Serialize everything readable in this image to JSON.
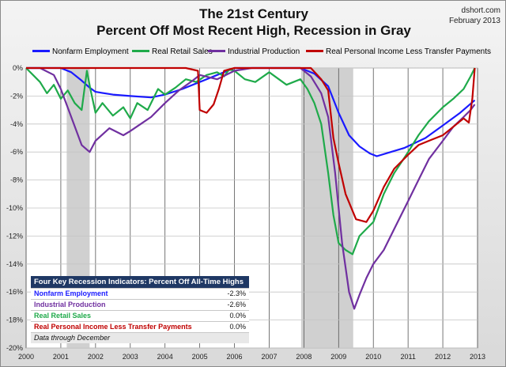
{
  "header": {
    "title_line1": "The 21st Century",
    "title_line2": "Percent Off Most Recent High, Recession in Gray",
    "source": "dshort.com",
    "date": "February 2013"
  },
  "legend": [
    {
      "name": "Nonfarm Employment",
      "color": "#1a1aff"
    },
    {
      "name": "Real Retail Sales",
      "color": "#1faa4a"
    },
    {
      "name": "Industrial Production",
      "color": "#7030a0"
    },
    {
      "name": "Real Personal Income Less Transfer Payments",
      "color": "#c00000"
    }
  ],
  "table": {
    "header": "Four Key Recession Indicators: Percent Off All-Time Highs",
    "rows": [
      {
        "label": "Nonfarm Employment",
        "value": "-2.3%",
        "color": "#1a1aff"
      },
      {
        "label": "Industrial Production",
        "value": "-2.6%",
        "color": "#7030a0"
      },
      {
        "label": "Real Retail Sales",
        "value": "0.0%",
        "color": "#1faa4a"
      },
      {
        "label": "Real Personal Income Less Transfer Payments",
        "value": "0.0%",
        "color": "#c00000"
      }
    ],
    "note": "Data through December"
  },
  "chart_data": {
    "type": "line",
    "title": "The 21st Century",
    "subtitle": "Percent Off Most Recent High, Recession in Gray",
    "xlabel": "",
    "ylabel": "",
    "xlim": [
      2000,
      2013
    ],
    "ylim": [
      -20,
      0
    ],
    "x_ticks": [
      "2000",
      "2001",
      "2002",
      "2003",
      "2004",
      "2005",
      "2006",
      "2007",
      "2008",
      "2009",
      "2010",
      "2011",
      "2012",
      "2013"
    ],
    "y_ticks": [
      "0%",
      "-2%",
      "-4%",
      "-6%",
      "-8%",
      "-10%",
      "-12%",
      "-14%",
      "-16%",
      "-18%",
      "-20%"
    ],
    "grid": true,
    "legend_position": "top",
    "recessions": [
      [
        2001.17,
        2001.83
      ],
      [
        2007.92,
        2009.42
      ]
    ],
    "series": [
      {
        "name": "Nonfarm Employment",
        "color": "#1a1aff",
        "x": [
          2000,
          2000.5,
          2001,
          2001.3,
          2001.6,
          2001.83,
          2002,
          2002.5,
          2003,
          2003.6,
          2004,
          2004.5,
          2005,
          2005.5,
          2006,
          2007,
          2007.9,
          2008.3,
          2008.7,
          2009,
          2009.3,
          2009.6,
          2009.9,
          2010.1,
          2010.5,
          2010.9,
          2011.5,
          2012,
          2012.5,
          2012.92
        ],
        "y": [
          0,
          0,
          0,
          -0.3,
          -0.9,
          -1.4,
          -1.7,
          -1.9,
          -2.0,
          -2.1,
          -1.9,
          -1.5,
          -1.0,
          -0.5,
          0,
          0,
          0,
          -0.4,
          -1.3,
          -3.2,
          -4.8,
          -5.6,
          -6.1,
          -6.3,
          -6.0,
          -5.7,
          -5.0,
          -4.1,
          -3.2,
          -2.3
        ]
      },
      {
        "name": "Real Retail Sales",
        "color": "#1faa4a",
        "x": [
          2000,
          2000.2,
          2000.4,
          2000.6,
          2000.8,
          2001,
          2001.2,
          2001.4,
          2001.6,
          2001.75,
          2001.85,
          2002,
          2002.2,
          2002.5,
          2002.8,
          2003,
          2003.2,
          2003.5,
          2003.8,
          2004,
          2004.3,
          2004.6,
          2004.9,
          2005.2,
          2005.5,
          2005.7,
          2005.85,
          2006,
          2006.3,
          2006.6,
          2007,
          2007.5,
          2007.9,
          2008.1,
          2008.3,
          2008.5,
          2008.7,
          2008.85,
          2009,
          2009.2,
          2009.4,
          2009.6,
          2009.8,
          2010,
          2010.3,
          2010.6,
          2011,
          2011.3,
          2011.6,
          2012,
          2012.3,
          2012.6,
          2012.8,
          2012.92
        ],
        "y": [
          0,
          -0.5,
          -1.0,
          -1.8,
          -1.2,
          -2.2,
          -1.6,
          -2.5,
          -3.0,
          -0.2,
          -1.5,
          -3.2,
          -2.5,
          -3.4,
          -2.8,
          -3.6,
          -2.5,
          -3.0,
          -1.5,
          -1.9,
          -1.4,
          -0.8,
          -1.0,
          -0.5,
          -0.3,
          -0.6,
          -0.1,
          -0.2,
          -0.8,
          -1.0,
          -0.3,
          -1.2,
          -0.8,
          -1.5,
          -2.5,
          -4.0,
          -7.5,
          -10.5,
          -12.5,
          -13.0,
          -13.3,
          -12.0,
          -11.5,
          -11.0,
          -9.0,
          -7.5,
          -6.0,
          -4.8,
          -3.8,
          -2.8,
          -2.2,
          -1.5,
          -0.6,
          0.0
        ]
      },
      {
        "name": "Industrial Production",
        "color": "#7030a0",
        "x": [
          2000,
          2000.4,
          2000.8,
          2001,
          2001.3,
          2001.6,
          2001.83,
          2002,
          2002.4,
          2002.8,
          2003,
          2003.3,
          2003.6,
          2004,
          2004.4,
          2004.8,
          2005,
          2005.5,
          2006,
          2006.5,
          2007,
          2007.5,
          2007.9,
          2008.2,
          2008.5,
          2008.7,
          2008.9,
          2009.1,
          2009.3,
          2009.45,
          2009.6,
          2009.8,
          2010,
          2010.3,
          2010.6,
          2011,
          2011.3,
          2011.6,
          2012,
          2012.3,
          2012.6,
          2012.8,
          2012.92
        ],
        "y": [
          0,
          0,
          -0.5,
          -1.5,
          -3.5,
          -5.5,
          -6.0,
          -5.2,
          -4.3,
          -4.8,
          -4.5,
          -4.0,
          -3.5,
          -2.5,
          -1.6,
          -0.9,
          -0.5,
          -0.8,
          -0.2,
          0,
          0,
          0,
          0,
          -0.6,
          -1.8,
          -3.5,
          -7.5,
          -12.5,
          -16.0,
          -17.2,
          -16.2,
          -15.0,
          -14.0,
          -13.0,
          -11.5,
          -9.5,
          -8.0,
          -6.5,
          -5.2,
          -4.2,
          -3.5,
          -3.0,
          -2.6
        ]
      },
      {
        "name": "Real Personal Income Less Transfer Payments",
        "color": "#c00000",
        "x": [
          2000,
          2000.5,
          2001,
          2001.5,
          2002,
          2003,
          2004,
          2004.6,
          2004.95,
          2005.0,
          2005.2,
          2005.4,
          2005.55,
          2005.7,
          2006,
          2007,
          2007.9,
          2008.2,
          2008.5,
          2008.7,
          2008.85,
          2009,
          2009.2,
          2009.5,
          2009.8,
          2010,
          2010.3,
          2010.6,
          2011,
          2011.3,
          2011.6,
          2012,
          2012.3,
          2012.6,
          2012.75,
          2012.85,
          2012.92
        ],
        "y": [
          0,
          0,
          0,
          0,
          0,
          0,
          0,
          0,
          -0.2,
          -3.0,
          -3.2,
          -2.6,
          -1.5,
          -0.2,
          0,
          0,
          0,
          0,
          -0.8,
          -1.6,
          -5.0,
          -6.8,
          -9.0,
          -10.8,
          -11.0,
          -10.2,
          -8.5,
          -7.2,
          -6.2,
          -5.5,
          -5.2,
          -4.8,
          -4.2,
          -3.6,
          -3.9,
          -2.2,
          0.0
        ]
      }
    ]
  }
}
